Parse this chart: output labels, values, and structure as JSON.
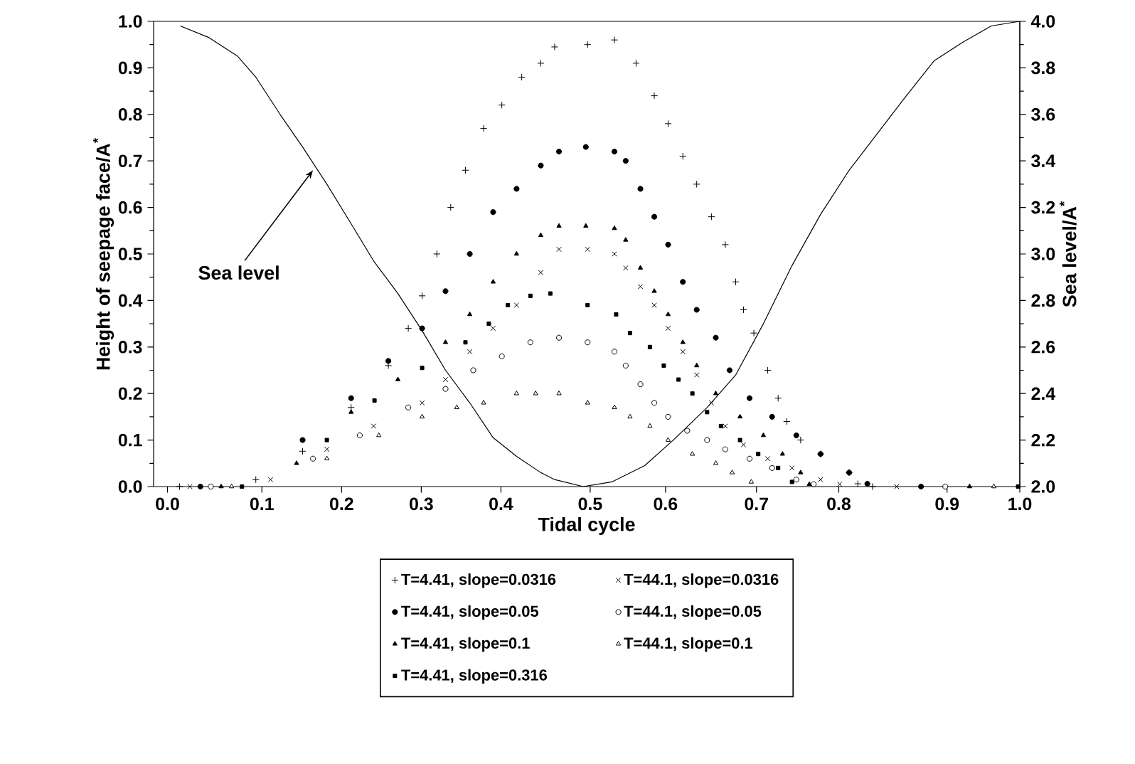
{
  "chart_data": {
    "type": "scatter",
    "xlabel": "Tidal cycle",
    "ylabel": "Height of seepage face/A$^{*}$",
    "y2label": "Sea level/A$^{*}$",
    "xlim": [
      0,
      1
    ],
    "xticks": [
      {
        "value": 0.016,
        "label": "0.0"
      },
      {
        "value": 0.125,
        "label": "0.1"
      },
      {
        "value": 0.217,
        "label": "0.2"
      },
      {
        "value": 0.309,
        "label": "0.3"
      },
      {
        "value": 0.401,
        "label": "0.4"
      },
      {
        "value": 0.504,
        "label": "0.5"
      },
      {
        "value": 0.591,
        "label": "0.6"
      },
      {
        "value": 0.696,
        "label": "0.7"
      },
      {
        "value": 0.791,
        "label": "0.8"
      },
      {
        "value": 0.916,
        "label": "0.9"
      },
      {
        "value": 1.0,
        "label": "1.0"
      }
    ],
    "ylim": [
      0,
      1
    ],
    "yticks": [
      {
        "value": 0,
        "label": "0.0"
      },
      0.1,
      0.2,
      0.3,
      0.4,
      0.5,
      0.6,
      0.7,
      0.8,
      0.9,
      {
        "value": 1,
        "label": "1.0"
      }
    ],
    "y2lim": [
      2,
      4
    ],
    "y2ticks": [
      {
        "value": 2,
        "label": "2.0"
      },
      2.2,
      2.4,
      2.6,
      2.8,
      {
        "value": 3,
        "label": "3.0"
      },
      3.2,
      3.4,
      3.6,
      3.8,
      {
        "value": 4,
        "label": "4.0"
      }
    ],
    "legend": "bottom",
    "annotations": [
      {
        "text": "Sea level",
        "x": 0.184,
        "y": 0.68
      }
    ],
    "series": [
      {
        "name": "T=4.41, slope=0.0316",
        "color": "#000000",
        "marker": "plus",
        "x": [
          0.03,
          0.118,
          0.172,
          0.228,
          0.271,
          0.294,
          0.31,
          0.327,
          0.343,
          0.36,
          0.381,
          0.402,
          0.425,
          0.447,
          0.463,
          0.501,
          0.532,
          0.557,
          0.578,
          0.594,
          0.611,
          0.627,
          0.644,
          0.66,
          0.672,
          0.681,
          0.693,
          0.709,
          0.721,
          0.731,
          0.747,
          0.77,
          0.803,
          0.813,
          0.83
        ],
        "values": [
          0,
          0.015,
          0.076,
          0.17,
          0.26,
          0.34,
          0.41,
          0.5,
          0.6,
          0.68,
          0.77,
          0.82,
          0.88,
          0.91,
          0.945,
          0.95,
          0.96,
          0.91,
          0.84,
          0.78,
          0.71,
          0.65,
          0.58,
          0.52,
          0.44,
          0.38,
          0.33,
          0.25,
          0.19,
          0.14,
          0.1,
          0.07,
          0.03,
          0.006,
          0
        ]
      },
      {
        "name": "T=44.1, slope=0.0316",
        "color": "#000000",
        "marker": "cross",
        "x": [
          0.042,
          0.135,
          0.2,
          0.254,
          0.31,
          0.337,
          0.365,
          0.392,
          0.419,
          0.447,
          0.468,
          0.501,
          0.532,
          0.545,
          0.562,
          0.578,
          0.594,
          0.611,
          0.627,
          0.644,
          0.66,
          0.681,
          0.709,
          0.737,
          0.77,
          0.792,
          0.858
        ],
        "values": [
          0,
          0.015,
          0.08,
          0.13,
          0.18,
          0.23,
          0.29,
          0.34,
          0.39,
          0.46,
          0.51,
          0.51,
          0.5,
          0.47,
          0.43,
          0.39,
          0.34,
          0.29,
          0.24,
          0.18,
          0.13,
          0.09,
          0.06,
          0.04,
          0.015,
          0.005,
          0
        ]
      },
      {
        "name": "T=4.41, slope=0.05",
        "color": "#000000",
        "marker": "circle",
        "x": [
          0.054,
          0.172,
          0.228,
          0.271,
          0.31,
          0.337,
          0.365,
          0.392,
          0.419,
          0.447,
          0.468,
          0.499,
          0.532,
          0.545,
          0.562,
          0.578,
          0.594,
          0.611,
          0.627,
          0.649,
          0.665,
          0.688,
          0.714,
          0.742,
          0.77,
          0.803,
          0.824,
          0.886
        ],
        "values": [
          0,
          0.1,
          0.19,
          0.27,
          0.34,
          0.42,
          0.5,
          0.59,
          0.64,
          0.69,
          0.72,
          0.73,
          0.72,
          0.7,
          0.64,
          0.58,
          0.52,
          0.44,
          0.38,
          0.32,
          0.25,
          0.19,
          0.15,
          0.11,
          0.07,
          0.03,
          0.006,
          0
        ]
      },
      {
        "name": "T=44.1, slope=0.05",
        "color": "#ffffff",
        "marker": "circle",
        "x": [
          0.066,
          0.184,
          0.238,
          0.294,
          0.337,
          0.369,
          0.402,
          0.435,
          0.468,
          0.501,
          0.532,
          0.545,
          0.562,
          0.578,
          0.594,
          0.616,
          0.639,
          0.66,
          0.688,
          0.714,
          0.742,
          0.762,
          0.914
        ],
        "values": [
          0,
          0.06,
          0.11,
          0.17,
          0.21,
          0.25,
          0.28,
          0.31,
          0.32,
          0.31,
          0.29,
          0.26,
          0.22,
          0.18,
          0.15,
          0.12,
          0.1,
          0.08,
          0.06,
          0.04,
          0.015,
          0.005,
          0
        ]
      },
      {
        "name": "T=4.41, slope=0.1",
        "color": "#000000",
        "marker": "triangle",
        "x": [
          0.078,
          0.165,
          0.228,
          0.282,
          0.337,
          0.365,
          0.392,
          0.419,
          0.447,
          0.468,
          0.499,
          0.532,
          0.545,
          0.562,
          0.578,
          0.594,
          0.611,
          0.627,
          0.649,
          0.677,
          0.704,
          0.726,
          0.747,
          0.757,
          0.942
        ],
        "values": [
          0,
          0.05,
          0.16,
          0.23,
          0.31,
          0.37,
          0.44,
          0.5,
          0.54,
          0.56,
          0.56,
          0.555,
          0.53,
          0.47,
          0.42,
          0.37,
          0.31,
          0.26,
          0.2,
          0.15,
          0.11,
          0.07,
          0.03,
          0.005,
          0
        ]
      },
      {
        "name": "T=44.1, slope=0.1",
        "color": "#ffffff",
        "marker": "triangle",
        "x": [
          0.09,
          0.2,
          0.26,
          0.31,
          0.35,
          0.381,
          0.419,
          0.441,
          0.468,
          0.501,
          0.532,
          0.55,
          0.573,
          0.594,
          0.622,
          0.649,
          0.668,
          0.69,
          0.97
        ],
        "values": [
          0,
          0.06,
          0.11,
          0.15,
          0.17,
          0.18,
          0.2,
          0.2,
          0.2,
          0.18,
          0.17,
          0.15,
          0.13,
          0.1,
          0.07,
          0.05,
          0.03,
          0.01,
          0
        ]
      },
      {
        "name": "T=4.41, slope=0.316",
        "color": "#000000",
        "marker": "square",
        "x": [
          0.102,
          0.2,
          0.255,
          0.31,
          0.36,
          0.387,
          0.409,
          0.435,
          0.458,
          0.501,
          0.534,
          0.55,
          0.573,
          0.589,
          0.606,
          0.622,
          0.639,
          0.655,
          0.677,
          0.698,
          0.721,
          0.737,
          0.998
        ],
        "values": [
          0,
          0.1,
          0.185,
          0.255,
          0.31,
          0.35,
          0.39,
          0.41,
          0.415,
          0.39,
          0.37,
          0.33,
          0.3,
          0.26,
          0.23,
          0.2,
          0.16,
          0.13,
          0.1,
          0.07,
          0.04,
          0.01,
          0
        ]
      },
      {
        "type": "line",
        "axis": "y2",
        "color": "#000000",
        "marker": "none",
        "x": [
          0.031,
          0.064,
          0.097,
          0.118,
          0.146,
          0.172,
          0.2,
          0.228,
          0.254,
          0.282,
          0.31,
          0.337,
          0.365,
          0.392,
          0.419,
          0.447,
          0.463,
          0.496,
          0.529,
          0.567,
          0.6,
          0.639,
          0.672,
          0.704,
          0.737,
          0.77,
          0.803,
          0.836,
          0.869,
          0.901,
          0.934,
          0.967,
          1.0
        ],
        "values": [
          3.98,
          3.93,
          3.85,
          3.76,
          3.6,
          3.46,
          3.3,
          3.13,
          2.97,
          2.83,
          2.67,
          2.5,
          2.36,
          2.21,
          2.13,
          2.06,
          2.03,
          2.0,
          2.02,
          2.09,
          2.2,
          2.34,
          2.48,
          2.7,
          2.95,
          3.17,
          3.36,
          3.52,
          3.68,
          3.83,
          3.91,
          3.98,
          4.0
        ]
      }
    ]
  }
}
